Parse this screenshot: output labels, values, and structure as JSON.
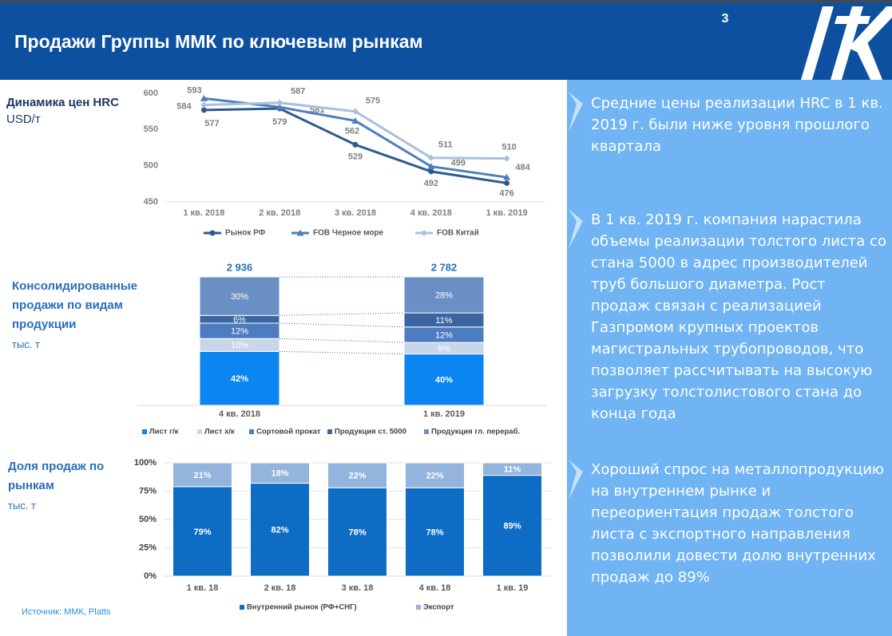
{
  "header": {
    "title": "Продажи Группы ММК по ключевым рынкам",
    "page": "3"
  },
  "chart_data": [
    {
      "type": "line",
      "title": "Динамика цен HRC",
      "subtitle": "USD/т",
      "categories": [
        "1 кв. 2018",
        "2 кв. 2018",
        "3 кв. 2018",
        "4 кв. 2018",
        "1 кв. 2019"
      ],
      "ylim": [
        450,
        600
      ],
      "yticks": [
        450,
        500,
        550,
        600
      ],
      "series": [
        {
          "name": "Рынок РФ",
          "color": "#2d5a8e",
          "values": [
            577,
            579,
            529,
            492,
            476
          ]
        },
        {
          "name": "FOB Черное море",
          "color": "#4f7fbb",
          "values": [
            593,
            581,
            562,
            499,
            484
          ]
        },
        {
          "name": "FOB Китай",
          "color": "#a9bfe0",
          "values": [
            584,
            587,
            575,
            511,
            510
          ]
        }
      ]
    },
    {
      "type": "stacked_bar",
      "title": "Консолидированные продажи по видам продукции",
      "subtitle": "тыс. т",
      "categories": [
        "4 кв. 2018",
        "1 кв. 2019"
      ],
      "ylim": [
        0,
        100
      ],
      "totals": {
        "values": [
          2936,
          2782
        ],
        "value_labels": [
          "2 936",
          "2 782"
        ]
      },
      "series": [
        {
          "name": "Лист г/к",
          "color": "#0a85f2",
          "values": [
            42,
            40
          ],
          "value_labels": [
            "42%",
            "40%"
          ]
        },
        {
          "name": "Лист х/к",
          "color": "#c8d6ea",
          "values": [
            10,
            9
          ],
          "value_labels": [
            "10%",
            "9%"
          ]
        },
        {
          "name": "Сортовой прокат",
          "color": "#4e7cc0",
          "values": [
            12,
            12
          ],
          "value_labels": [
            "12%",
            "12%"
          ]
        },
        {
          "name": "Продукция ст. 5000",
          "color": "#3a65a2",
          "values": [
            6,
            11
          ],
          "value_labels": [
            "6%",
            "11%"
          ]
        },
        {
          "name": "Продукция гл. перераб.",
          "color": "#6a8fc5",
          "values": [
            30,
            28
          ],
          "value_labels": [
            "30%",
            "28%"
          ]
        }
      ]
    },
    {
      "type": "stacked_bar",
      "title": "Доля продаж  по рынкам",
      "subtitle": "тыс. т",
      "categories": [
        "1 кв. 18",
        "2 кв. 18",
        "3 кв. 18",
        "4 кв. 18",
        "1 кв. 19"
      ],
      "ylim": [
        0,
        100
      ],
      "yticks": [
        {
          "value": 0,
          "label": "0%"
        },
        {
          "value": 25,
          "label": "25%"
        },
        {
          "value": 50,
          "label": "50%"
        },
        {
          "value": 75,
          "label": "75%"
        },
        {
          "value": 100,
          "label": "100%"
        }
      ],
      "grid": true,
      "series": [
        {
          "name": "Внутренний рынок (РФ+СНГ)",
          "color": "#0e6cc4",
          "values": [
            79,
            82,
            78,
            78,
            89
          ],
          "value_labels": [
            "79%",
            "82%",
            "78%",
            "78%",
            "89%"
          ]
        },
        {
          "name": "Экспорт",
          "color": "#93b4dc",
          "values": [
            21,
            18,
            22,
            22,
            11
          ],
          "value_labels": [
            "21%",
            "18%",
            "22%",
            "22%",
            "11%"
          ]
        }
      ]
    }
  ],
  "bullets": [
    "Средние цены реализации HRC в 1 кв. 2019 г. были ниже уровня прошлого квартала",
    "В 1 кв. 2019 г. компания нарастила объемы реализации толстого листа со стана 5000 в адрес производителей труб большого диаметра. Рост продаж связан с реализацией Газпромом крупных проектов магистральных трубопроводов, что позволяет рассчитывать на высокую загрузку толстолистового стана до конца года",
    "Хороший спрос на металлопродукцию на внутреннем рынке и переориентация продаж толстого листа с экспортного направления позволили довести долю внутренних продаж до 89%"
  ],
  "source": "Источник: ММК, Platts"
}
